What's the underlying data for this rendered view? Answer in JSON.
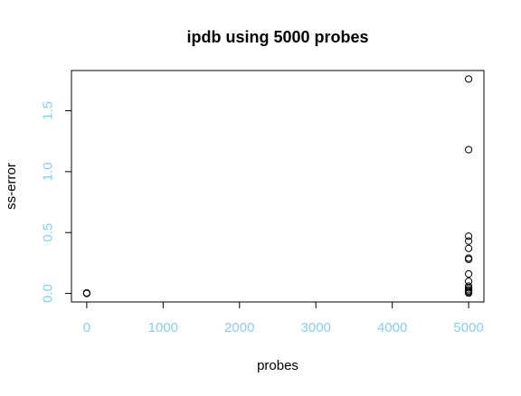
{
  "chart_data": {
    "type": "scatter",
    "title": "ipdb using 5000 probes",
    "xlabel": "probes",
    "ylabel": "ss-error",
    "xlim": [
      -200,
      5200
    ],
    "ylim": [
      -0.07,
      1.83
    ],
    "x_ticks": [
      0,
      1000,
      2000,
      3000,
      4000,
      5000
    ],
    "x_tick_labels": [
      "0",
      "1000",
      "2000",
      "3000",
      "4000",
      "5000"
    ],
    "y_ticks": [
      0.0,
      0.5,
      1.0,
      1.5
    ],
    "y_tick_labels": [
      "0.0",
      "0.5",
      "1.0",
      "1.5"
    ],
    "grid": false,
    "marker": "open-circle",
    "series": [
      {
        "x": [
          0,
          0,
          0,
          5000,
          5000,
          5000,
          5000,
          5000,
          5000,
          5000,
          5000,
          5000,
          5000,
          5000,
          5000,
          5000,
          5000,
          5000
        ],
        "y": [
          0.0,
          0.002,
          0.004,
          1.76,
          1.18,
          0.47,
          0.43,
          0.37,
          0.29,
          0.28,
          0.16,
          0.1,
          0.06,
          0.045,
          0.03,
          0.02,
          0.01,
          0.003
        ]
      }
    ]
  },
  "colors": {
    "tick_labels": "#87CEEB",
    "axes": "#000000",
    "points": "#000000",
    "text": "#000000",
    "background": "#FFFFFF"
  }
}
